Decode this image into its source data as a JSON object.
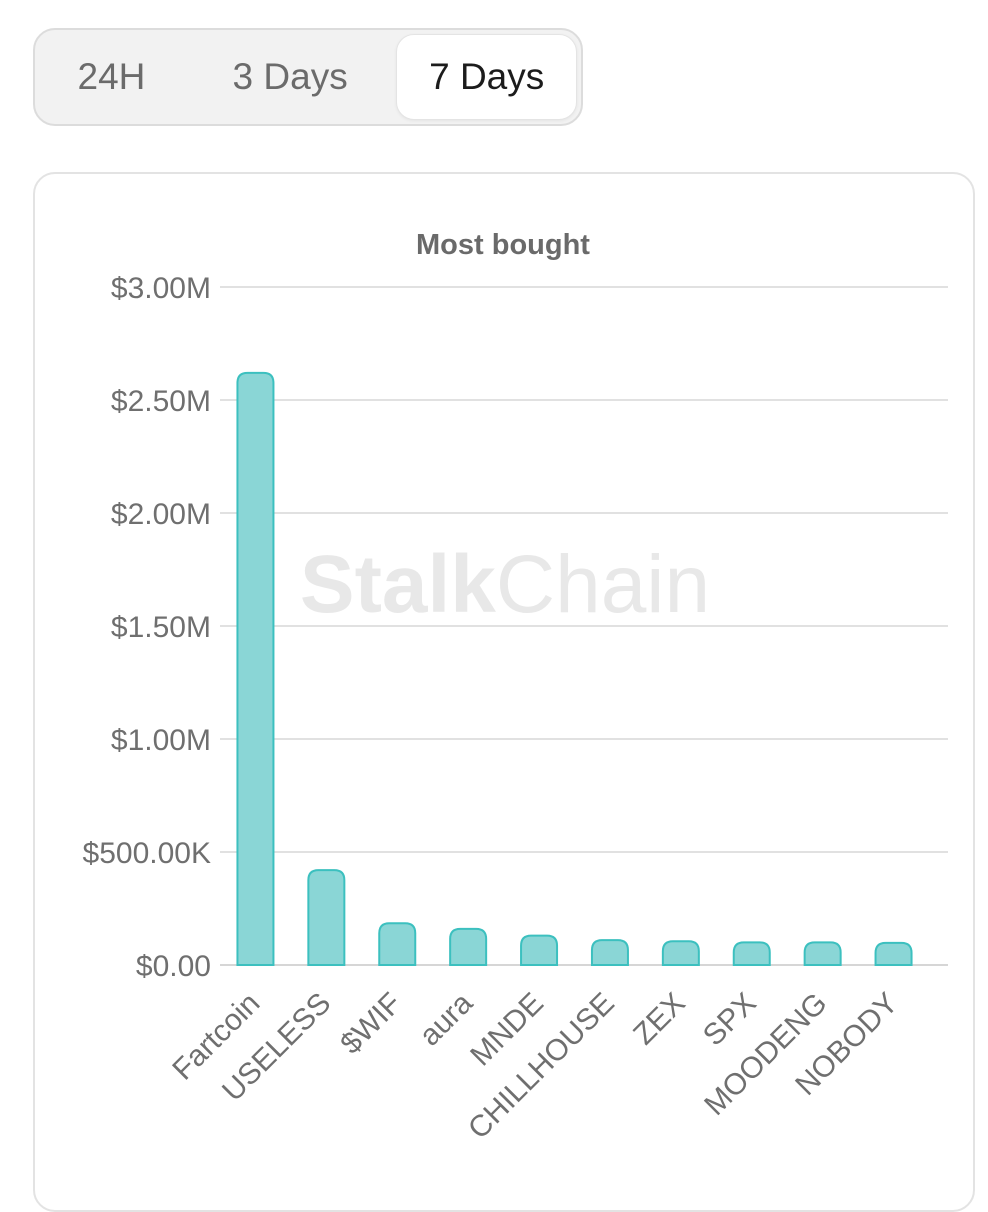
{
  "timeframe": {
    "options": [
      "24H",
      "3 Days",
      "7 Days"
    ],
    "selected": "7 Days"
  },
  "watermark": {
    "bold": "Stalk",
    "light": "Chain"
  },
  "colors": {
    "bar_fill": "#8ad6d6",
    "bar_stroke": "#3cc0bf",
    "grid": "#e1e1e1",
    "text": "#6f6f6f",
    "title": "#6a6a6a",
    "watermark": "#e8e8e8"
  },
  "chart_data": {
    "type": "bar",
    "title": "Most bought",
    "xlabel": "",
    "ylabel": "",
    "categories": [
      "Fartcoin",
      "USELESS",
      "$WIF",
      "aura",
      "MNDE",
      "CHILLHOUSE",
      "ZEX",
      "SPX",
      "MOODENG",
      "NOBODY"
    ],
    "values": [
      2620000,
      420000,
      185000,
      160000,
      130000,
      110000,
      105000,
      100000,
      100000,
      98000
    ],
    "ylim": [
      0,
      3000000
    ],
    "yticks": [
      0,
      500000,
      1000000,
      1500000,
      2000000,
      2500000,
      3000000
    ],
    "ytick_labels": [
      "$0.00",
      "$500.00K",
      "$1.00M",
      "$1.50M",
      "$2.00M",
      "$2.50M",
      "$3.00M"
    ],
    "grid": true,
    "legend": "none"
  }
}
